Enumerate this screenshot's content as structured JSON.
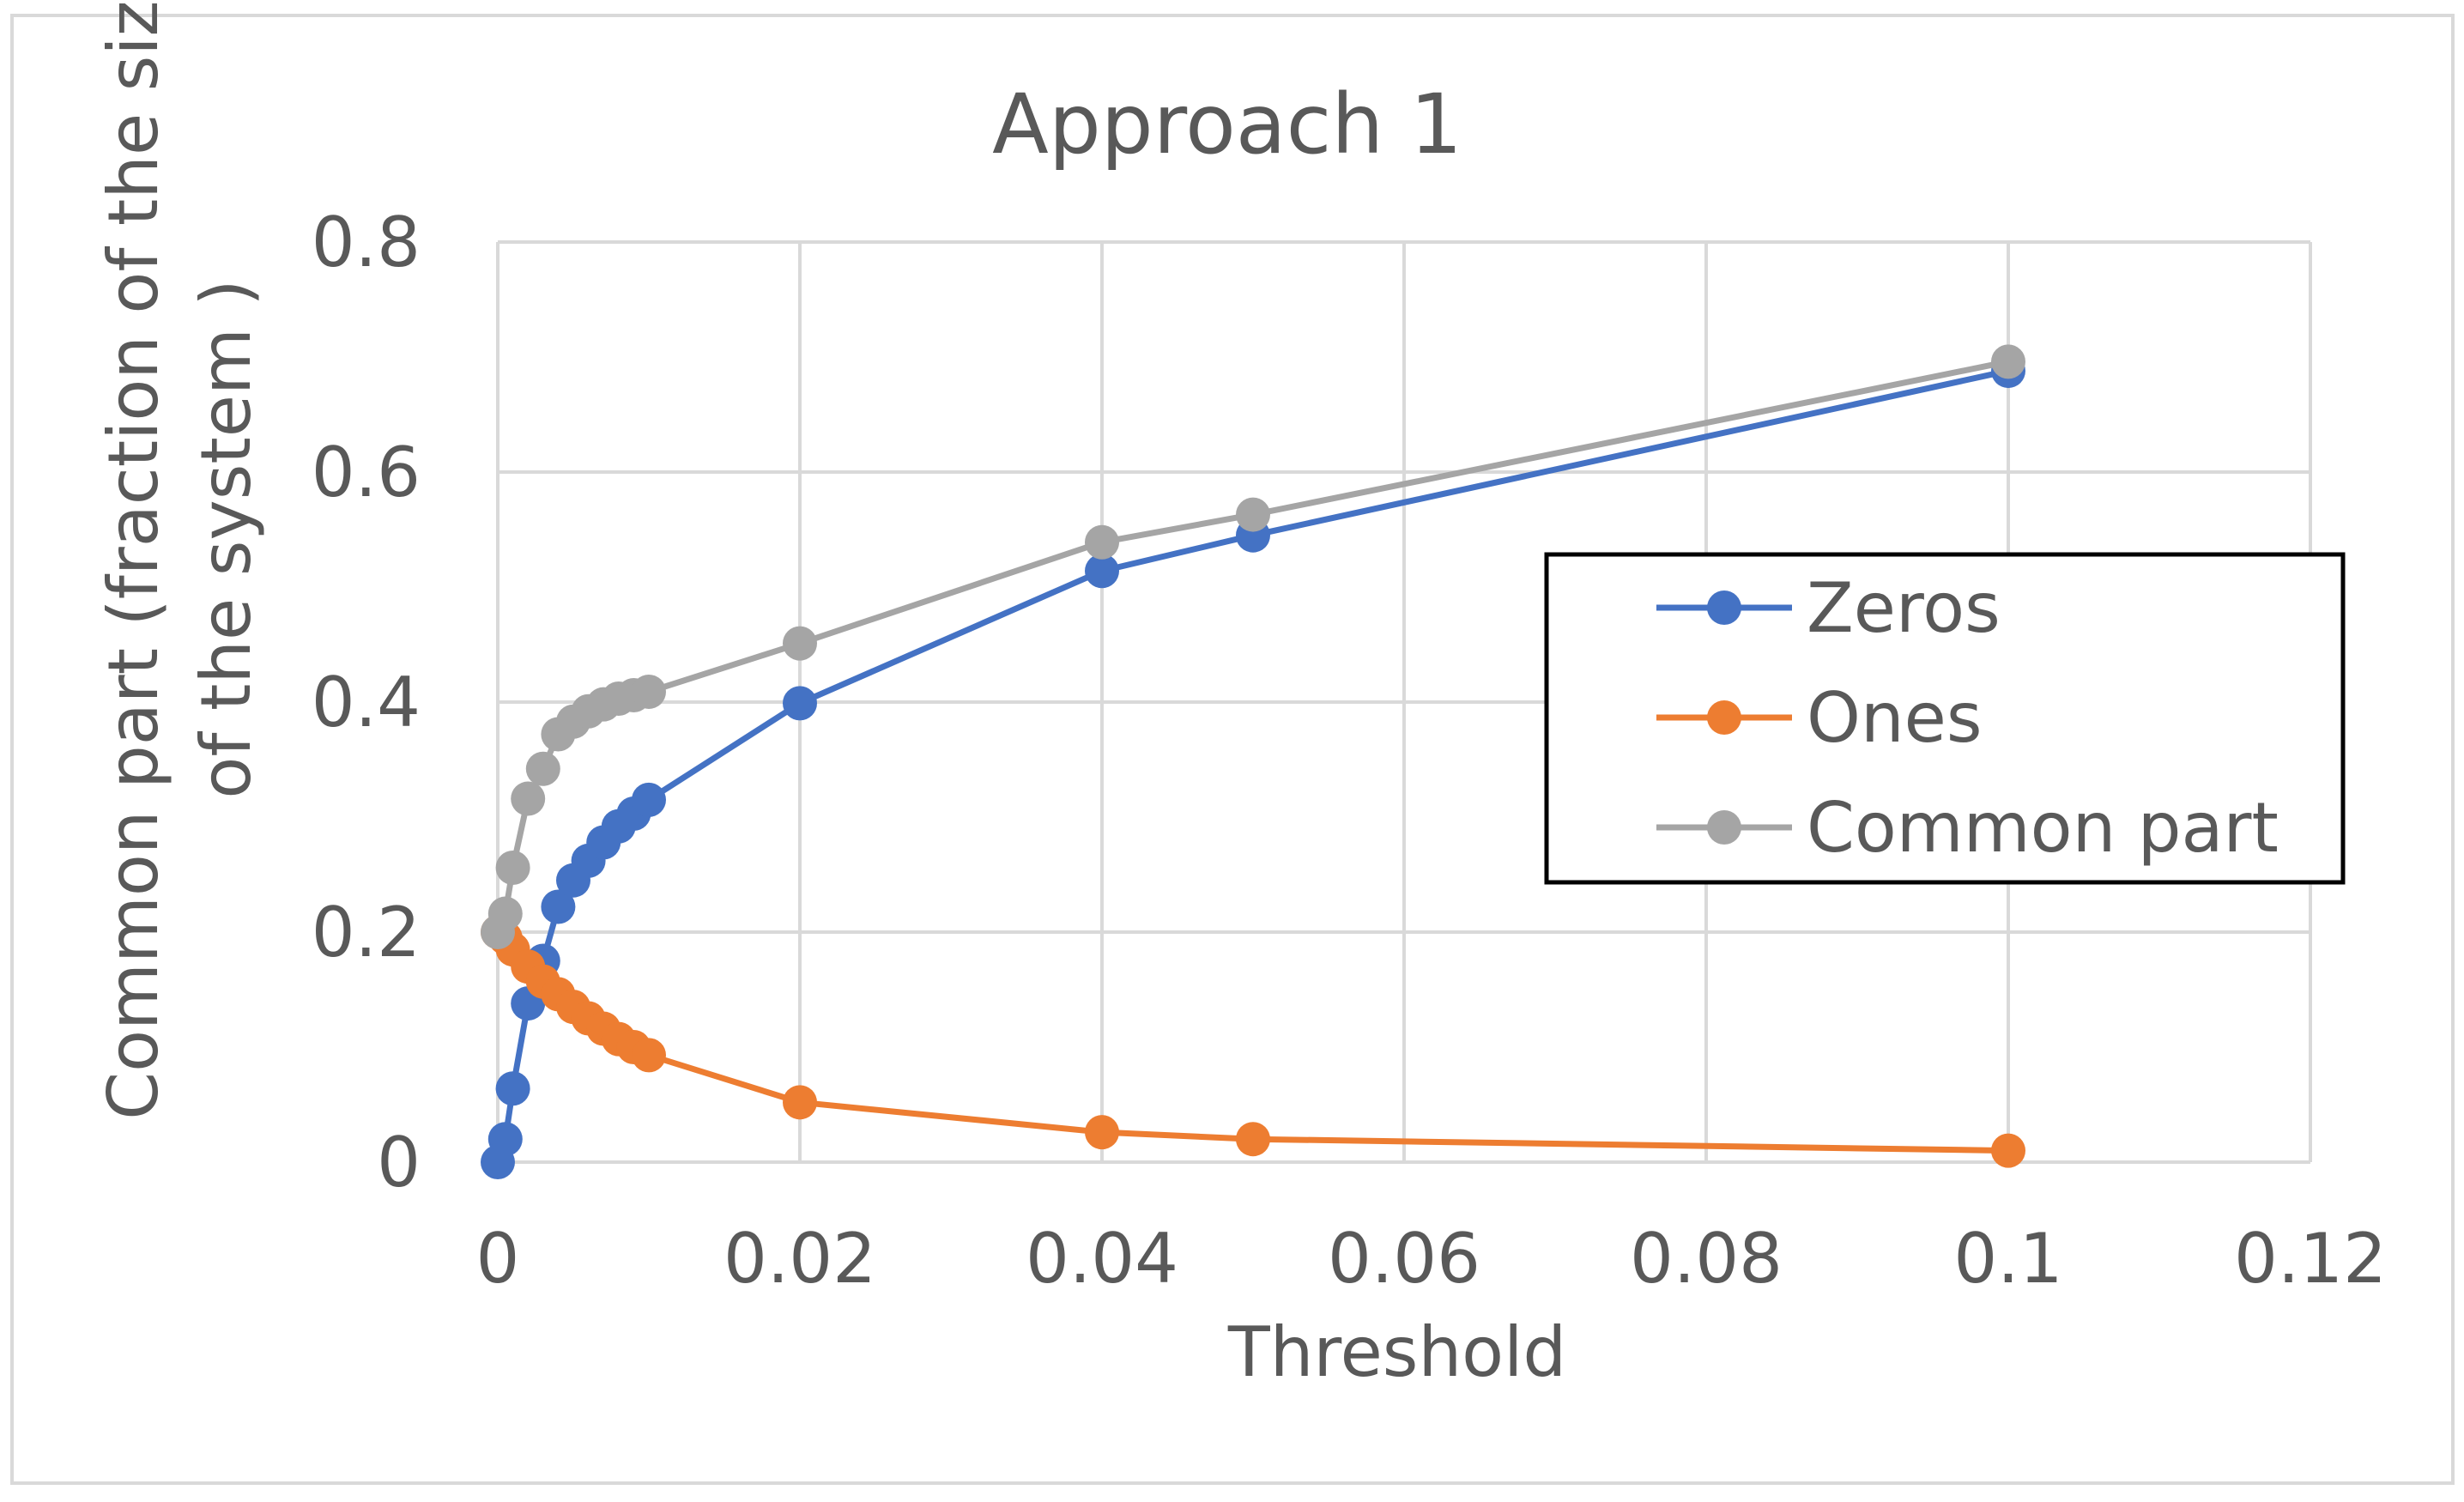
{
  "chart_data": {
    "type": "line",
    "title": "Approach 1",
    "xlabel": "Threshold",
    "ylabel": [
      "Common part (fraction of the size",
      "of the system )"
    ],
    "xlim": [
      0,
      0.12
    ],
    "ylim": [
      0,
      0.8
    ],
    "x_ticks": [
      0,
      0.02,
      0.04,
      0.06,
      0.08,
      0.1,
      0.12
    ],
    "x_tick_labels": [
      "0",
      "0.02",
      "0.04",
      "0.06",
      "0.08",
      "0.1",
      "0.12"
    ],
    "y_ticks": [
      0,
      0.2,
      0.4,
      0.6,
      0.8
    ],
    "y_tick_labels": [
      "0",
      "0.2",
      "0.4",
      "0.6",
      "0.8"
    ],
    "grid": true,
    "legend_position": "right",
    "series": [
      {
        "name": "Zeros",
        "color": "#4472C4",
        "x": [
          0,
          0.0005,
          0.001,
          0.002,
          0.003,
          0.004,
          0.005,
          0.006,
          0.007,
          0.008,
          0.009,
          0.01,
          0.02,
          0.04,
          0.05,
          0.1
        ],
        "y": [
          0,
          0.02,
          0.064,
          0.138,
          0.175,
          0.222,
          0.245,
          0.262,
          0.278,
          0.292,
          0.303,
          0.315,
          0.399,
          0.514,
          0.545,
          0.688
        ]
      },
      {
        "name": "Ones",
        "color": "#ED7D31",
        "x": [
          0,
          0.0005,
          0.001,
          0.002,
          0.003,
          0.004,
          0.005,
          0.006,
          0.007,
          0.008,
          0.009,
          0.01,
          0.02,
          0.04,
          0.05,
          0.1
        ],
        "y": [
          0.2,
          0.195,
          0.185,
          0.17,
          0.157,
          0.146,
          0.135,
          0.125,
          0.116,
          0.107,
          0.1,
          0.093,
          0.052,
          0.026,
          0.02,
          0.01
        ]
      },
      {
        "name": "Common part",
        "color": "#A5A5A5",
        "x": [
          0,
          0.0005,
          0.001,
          0.002,
          0.003,
          0.004,
          0.005,
          0.006,
          0.007,
          0.008,
          0.009,
          0.01,
          0.02,
          0.04,
          0.05,
          0.1
        ],
        "y": [
          0.2,
          0.216,
          0.256,
          0.316,
          0.342,
          0.372,
          0.383,
          0.392,
          0.398,
          0.403,
          0.406,
          0.409,
          0.451,
          0.539,
          0.563,
          0.696
        ]
      }
    ]
  }
}
